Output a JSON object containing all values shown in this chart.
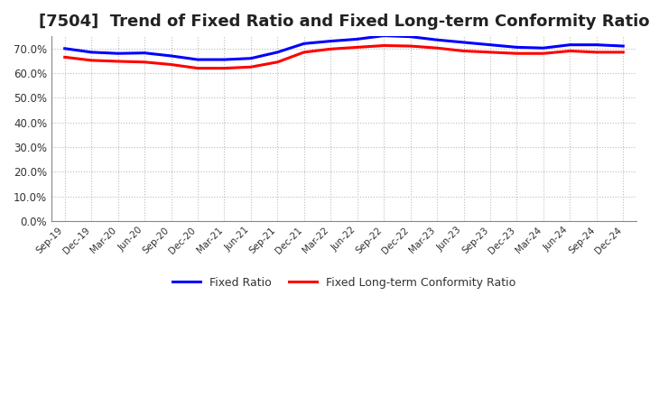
{
  "title": "[7504]  Trend of Fixed Ratio and Fixed Long-term Conformity Ratio",
  "x_labels": [
    "Sep-19",
    "Dec-19",
    "Mar-20",
    "Jun-20",
    "Sep-20",
    "Dec-20",
    "Mar-21",
    "Jun-21",
    "Sep-21",
    "Dec-21",
    "Mar-22",
    "Jun-22",
    "Sep-22",
    "Dec-22",
    "Mar-23",
    "Jun-23",
    "Sep-23",
    "Dec-23",
    "Mar-24",
    "Jun-24",
    "Sep-24",
    "Dec-24"
  ],
  "fixed_ratio": [
    70.0,
    68.5,
    68.0,
    68.2,
    67.0,
    65.5,
    65.5,
    66.0,
    68.5,
    72.0,
    73.0,
    73.8,
    75.2,
    74.8,
    73.5,
    72.5,
    71.5,
    70.5,
    70.2,
    71.5,
    71.5,
    71.0
  ],
  "fixed_lt_ratio": [
    66.5,
    65.2,
    64.8,
    64.5,
    63.5,
    62.0,
    62.0,
    62.5,
    64.5,
    68.5,
    69.8,
    70.5,
    71.2,
    71.0,
    70.2,
    69.0,
    68.5,
    68.0,
    68.0,
    69.0,
    68.5,
    68.5
  ],
  "fixed_ratio_color": "#0000FF",
  "fixed_lt_ratio_color": "#FF0000",
  "ylim": [
    0,
    75
  ],
  "yticks": [
    0,
    10,
    20,
    30,
    40,
    50,
    60,
    70
  ],
  "ytick_labels": [
    "0.0%",
    "10.0%",
    "20.0%",
    "30.0%",
    "40.0%",
    "50.0%",
    "60.0%",
    "70.0%"
  ],
  "background_color": "#FFFFFF",
  "grid_color": "#BBBBBB",
  "legend_fixed_ratio": "Fixed Ratio",
  "legend_fixed_lt_ratio": "Fixed Long-term Conformity Ratio",
  "title_fontsize": 13,
  "line_width": 2.2
}
